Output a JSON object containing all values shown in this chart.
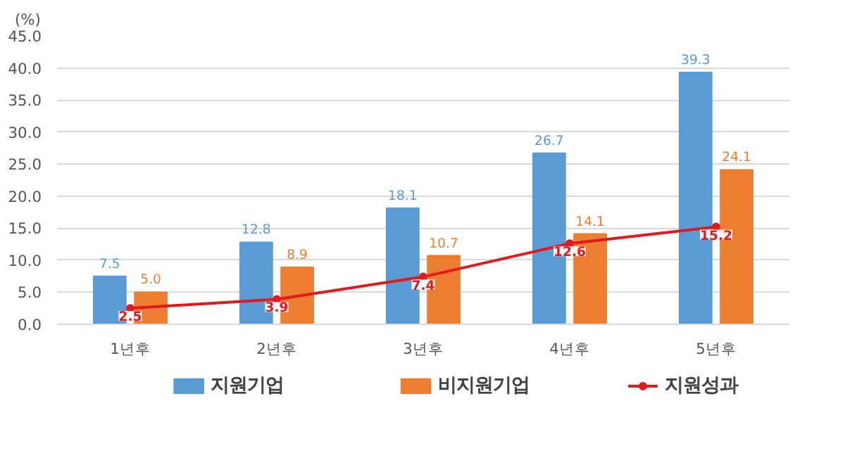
{
  "chart_data": {
    "type": "bar",
    "ylabel": "(%)",
    "categories": [
      "1년후",
      "2년후",
      "3년후",
      "4년후",
      "5년후"
    ],
    "series": [
      {
        "name": "지원기업",
        "color": "#5b9bd5",
        "values": [
          7.5,
          12.8,
          18.1,
          26.7,
          39.3
        ],
        "value_labels": [
          "7.5",
          "12.8",
          "18.1",
          "26.7",
          "39.3"
        ]
      },
      {
        "name": "비지원기업",
        "color": "#ed7d31",
        "values": [
          5.0,
          8.9,
          10.7,
          14.1,
          24.1
        ],
        "value_labels": [
          "5.0",
          "8.9",
          "10.7",
          "14.1",
          "24.1"
        ]
      },
      {
        "name": "지원성과",
        "type": "line",
        "color": "#e31a1c",
        "marker": "circle",
        "values": [
          2.5,
          3.9,
          7.4,
          12.6,
          15.2
        ],
        "value_labels": [
          "2.5",
          "3.9",
          "7.4",
          "12.6",
          "15.2"
        ]
      }
    ],
    "ylim": [
      0,
      45
    ],
    "yticks": [
      {
        "value": 0,
        "label": "0.0"
      },
      {
        "value": 5,
        "label": "5.0"
      },
      {
        "value": 10,
        "label": "10.0"
      },
      {
        "value": 15,
        "label": "15.0"
      },
      {
        "value": 20,
        "label": "20.0"
      },
      {
        "value": 25,
        "label": "25.0"
      },
      {
        "value": 30,
        "label": "30.0"
      },
      {
        "value": 35,
        "label": "35.0"
      },
      {
        "value": 40,
        "label": "40.0"
      },
      {
        "value": 45,
        "label": "45.0"
      }
    ],
    "grid": "y",
    "legend": "bottom"
  }
}
